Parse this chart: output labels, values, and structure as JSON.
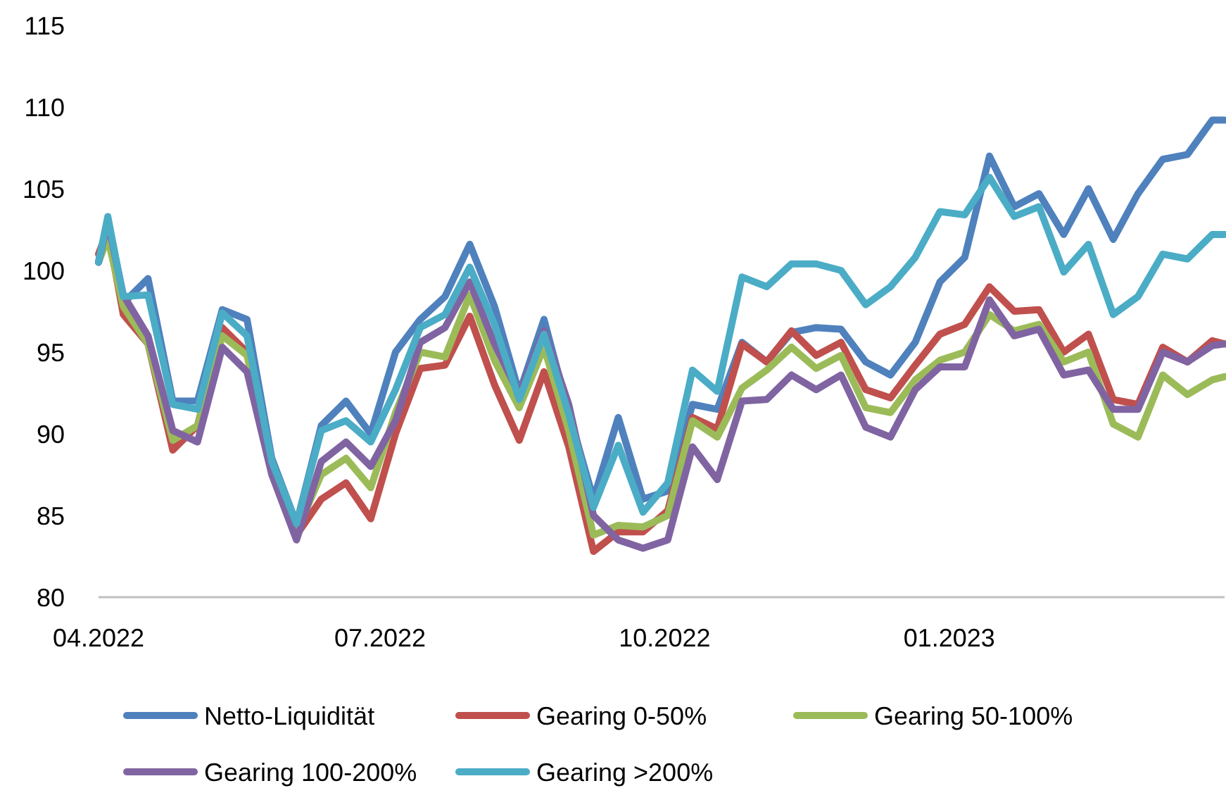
{
  "chart_data": {
    "type": "line",
    "x": [
      "2022-04-01",
      "2022-04-04",
      "2022-04-09",
      "2022-04-17",
      "2022-04-25",
      "2022-05-03",
      "2022-05-11",
      "2022-05-19",
      "2022-05-27",
      "2022-06-04",
      "2022-06-12",
      "2022-06-20",
      "2022-06-28",
      "2022-07-06",
      "2022-07-14",
      "2022-07-22",
      "2022-07-30",
      "2022-08-07",
      "2022-08-15",
      "2022-08-23",
      "2022-08-31",
      "2022-09-08",
      "2022-09-16",
      "2022-09-24",
      "2022-10-02",
      "2022-10-10",
      "2022-10-18",
      "2022-10-26",
      "2022-11-03",
      "2022-11-11",
      "2022-11-19",
      "2022-11-27",
      "2022-12-05",
      "2022-12-13",
      "2022-12-21",
      "2022-12-29",
      "2023-01-06",
      "2023-01-14",
      "2023-01-22",
      "2023-01-30",
      "2023-02-07",
      "2023-02-15",
      "2023-02-23",
      "2023-03-03",
      "2023-03-11",
      "2023-03-19",
      "2023-03-27",
      "2023-03-31"
    ],
    "series": [
      {
        "name": "Netto-Liquidität",
        "color": "#4f81bd",
        "values": [
          100.5,
          103,
          98,
          99.5,
          92,
          92,
          97.6,
          97,
          88.5,
          84.5,
          90.5,
          92,
          90,
          95,
          97,
          98.4,
          101.6,
          97.8,
          92.5,
          97,
          91.3,
          86,
          91,
          86,
          86.5,
          91.8,
          91.5,
          95.6,
          94.4,
          96.2,
          96.5,
          96.4,
          94.4,
          93.6,
          95.6,
          99.3,
          100.8,
          107,
          103.9,
          104.7,
          102.2,
          105,
          101.9,
          104.7,
          106.8,
          107.1,
          109.2,
          109.2
        ]
      },
      {
        "name": "Gearing 0-50%",
        "color": "#c0504d",
        "values": [
          101,
          102.5,
          97.3,
          95.5,
          89,
          90.5,
          96.5,
          95,
          88,
          83.8,
          86,
          87,
          84.8,
          90,
          94,
          94.2,
          97.2,
          93,
          89.6,
          93.8,
          89.2,
          82.8,
          84,
          84,
          85.3,
          91,
          90.3,
          95.5,
          94.4,
          96.3,
          94.8,
          95.6,
          92.7,
          92.2,
          94.2,
          96.1,
          96.7,
          99,
          97.5,
          97.6,
          95,
          96.1,
          92.1,
          91.8,
          95.3,
          94.4,
          95.7,
          95.5
        ]
      },
      {
        "name": "Gearing 50-100%",
        "color": "#9bbb59",
        "values": [
          100.5,
          102,
          97.8,
          95.5,
          89.6,
          90.5,
          96,
          94.8,
          88,
          84,
          87.5,
          88.5,
          86.7,
          91.3,
          95,
          94.7,
          98.5,
          94.5,
          91.6,
          95.3,
          90.2,
          83.8,
          84.4,
          84.3,
          85,
          90.8,
          89.8,
          92.8,
          93.9,
          95.3,
          94,
          94.8,
          91.6,
          91.3,
          93.3,
          94.5,
          95,
          97.3,
          96.3,
          96.7,
          94.4,
          95,
          90.6,
          89.8,
          93.6,
          92.4,
          93.3,
          93.5
        ]
      },
      {
        "name": "Gearing 100-200%",
        "color": "#8064a2",
        "values": [
          100.5,
          103,
          98.5,
          96,
          90.2,
          89.5,
          95.3,
          93.8,
          87.5,
          83.5,
          88.3,
          89.5,
          88,
          90.8,
          95.6,
          96.5,
          99.3,
          95.5,
          92.4,
          96.3,
          91.8,
          85,
          83.5,
          83,
          83.5,
          89.2,
          87.2,
          92,
          92.1,
          93.6,
          92.7,
          93.6,
          90.4,
          89.8,
          92.7,
          94.1,
          94.1,
          98.2,
          96,
          96.4,
          93.6,
          93.9,
          91.5,
          91.5,
          95,
          94.4,
          95.4,
          95.5
        ]
      },
      {
        "name": "Gearing >200%",
        "color": "#4bacc6",
        "values": [
          100.5,
          103.3,
          98.4,
          98.5,
          91.8,
          91.5,
          97.4,
          96,
          88.3,
          84.5,
          90.2,
          90.8,
          89.5,
          92.7,
          96.5,
          97.3,
          100.2,
          96.7,
          92.1,
          96.1,
          91.2,
          85.5,
          89.3,
          85.2,
          87,
          93.9,
          92.6,
          99.6,
          99,
          100.4,
          100.4,
          100,
          97.9,
          99,
          100.8,
          103.6,
          103.4,
          105.7,
          103.3,
          103.9,
          99.9,
          101.6,
          97.3,
          98.4,
          101,
          100.7,
          102.2,
          102.2
        ]
      }
    ],
    "xlim": [
      "2022-04-01",
      "2023-03-31"
    ],
    "xticks": [
      {
        "value": "2022-04-01",
        "label": "04.2022"
      },
      {
        "value": "2022-07-01",
        "label": "07.2022"
      },
      {
        "value": "2022-10-01",
        "label": "10.2022"
      },
      {
        "value": "2023-01-01",
        "label": "01.2023"
      }
    ],
    "ylim": [
      80,
      115
    ],
    "yticks": [
      80,
      85,
      90,
      95,
      100,
      105,
      110,
      115
    ],
    "legend": "bottom",
    "marker": "none",
    "line_style": "solid"
  }
}
